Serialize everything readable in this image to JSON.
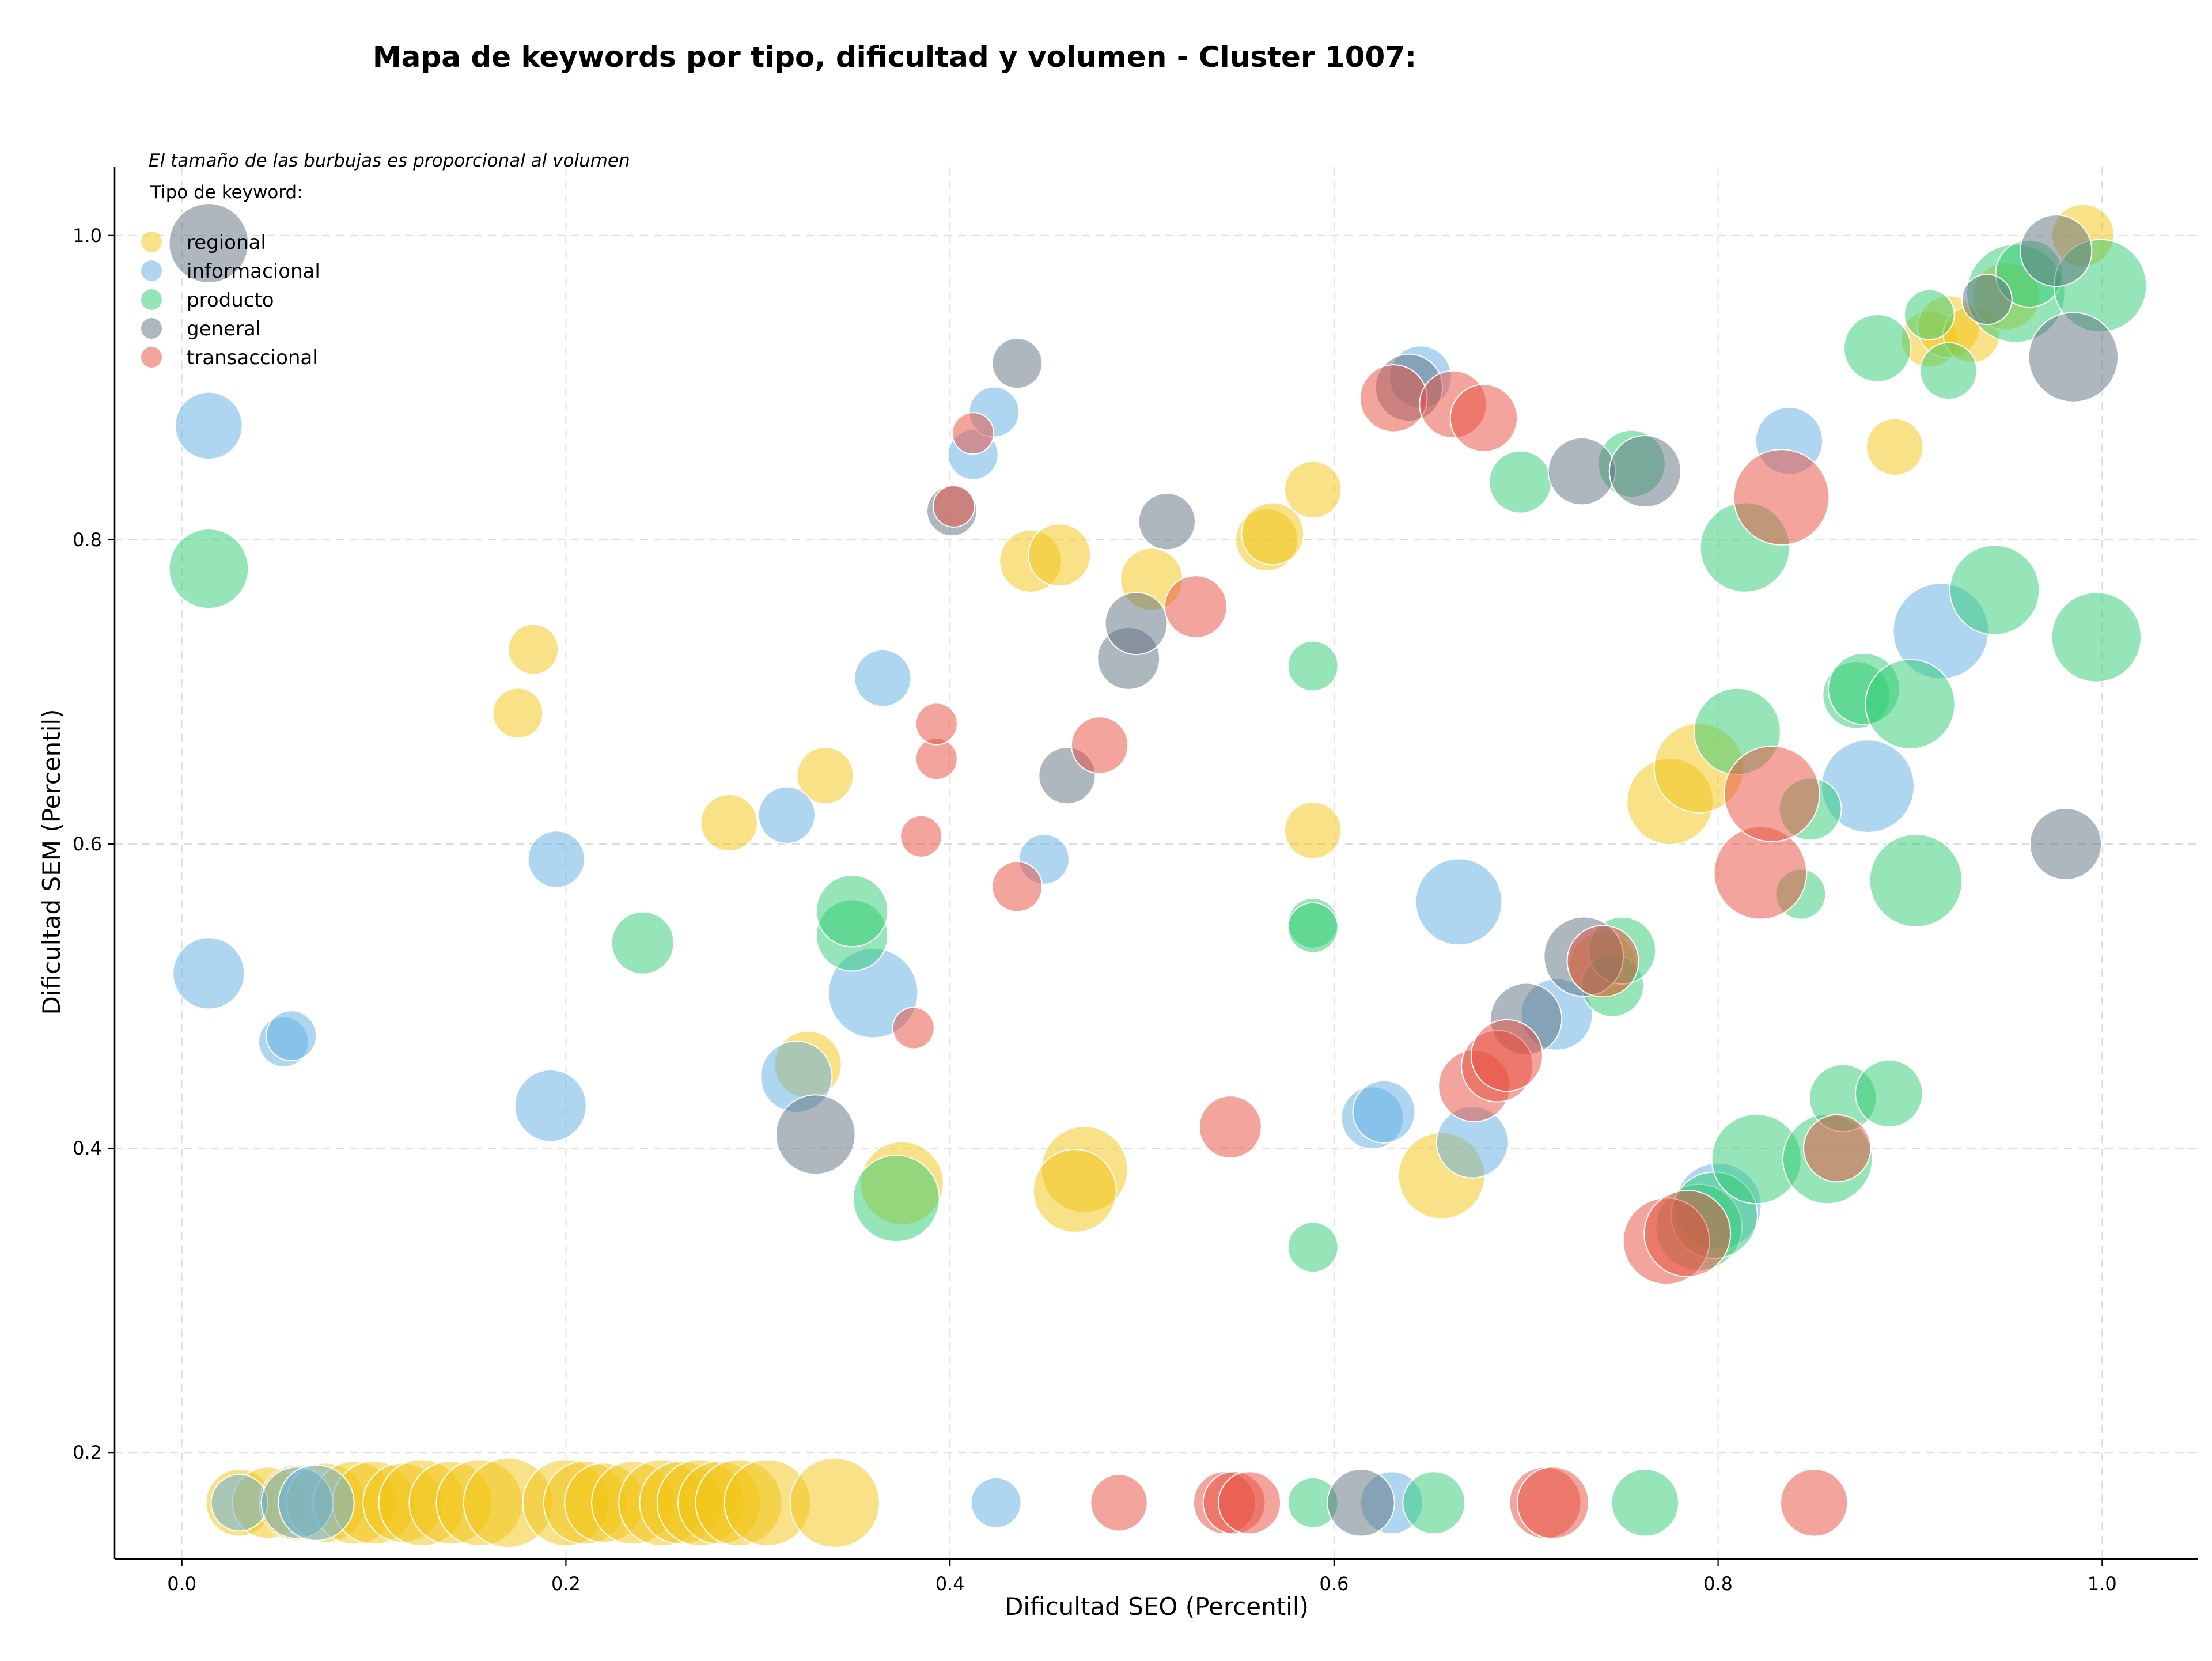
{
  "chart_data": {
    "type": "scatter",
    "title": "Mapa de keywords por tipo, dificultad y volumen - Cluster 1007:",
    "subtitle": "El tamaño de las burbujas es proporcional al volumen",
    "xlabel": "Dificultad SEO (Percentil)",
    "ylabel": "Dificultad SEM (Percentil)",
    "xlim": [
      -0.035,
      1.05
    ],
    "ylim": [
      0.13,
      1.045
    ],
    "x_ticks": [
      "0.0",
      "0.2",
      "0.4",
      "0.6",
      "0.8",
      "1.0"
    ],
    "y_ticks": [
      "0.2",
      "0.4",
      "0.6",
      "0.8",
      "1.0"
    ],
    "grid": true,
    "legend": {
      "title": "Tipo de keyword:",
      "position": "top-left"
    },
    "series": [
      {
        "name": "regional",
        "color": "#f1c40f",
        "points": [
          [
            0.03,
            0.167,
            5
          ],
          [
            0.045,
            0.167,
            6
          ],
          [
            0.06,
            0.167,
            7
          ],
          [
            0.075,
            0.167,
            8
          ],
          [
            0.09,
            0.167,
            9
          ],
          [
            0.1,
            0.167,
            9
          ],
          [
            0.115,
            0.167,
            8
          ],
          [
            0.125,
            0.167,
            10
          ],
          [
            0.14,
            0.167,
            9
          ],
          [
            0.155,
            0.167,
            10
          ],
          [
            0.17,
            0.167,
            11
          ],
          [
            0.2,
            0.167,
            10
          ],
          [
            0.21,
            0.167,
            9
          ],
          [
            0.22,
            0.167,
            8
          ],
          [
            0.235,
            0.167,
            9
          ],
          [
            0.25,
            0.167,
            10
          ],
          [
            0.26,
            0.167,
            9
          ],
          [
            0.27,
            0.167,
            10
          ],
          [
            0.28,
            0.167,
            9
          ],
          [
            0.29,
            0.167,
            10
          ],
          [
            0.305,
            0.167,
            10
          ],
          [
            0.34,
            0.167,
            11
          ],
          [
            0.183,
            0.728,
            2
          ],
          [
            0.175,
            0.686,
            2
          ],
          [
            0.285,
            0.614,
            3
          ],
          [
            0.335,
            0.645,
            3
          ],
          [
            0.326,
            0.455,
            5
          ],
          [
            0.375,
            0.377,
            9
          ],
          [
            0.47,
            0.386,
            10
          ],
          [
            0.465,
            0.372,
            9
          ],
          [
            0.442,
            0.786,
            4
          ],
          [
            0.457,
            0.79,
            4
          ],
          [
            0.505,
            0.774,
            4
          ],
          [
            0.565,
            0.8,
            4
          ],
          [
            0.568,
            0.804,
            4
          ],
          [
            0.589,
            0.833,
            3
          ],
          [
            0.589,
            0.609,
            3
          ],
          [
            0.656,
            0.382,
            10
          ],
          [
            0.775,
            0.628,
            10
          ],
          [
            0.79,
            0.65,
            11
          ],
          [
            0.892,
            0.861,
            3
          ],
          [
            0.91,
            0.932,
            3
          ],
          [
            0.92,
            0.94,
            4
          ],
          [
            0.932,
            0.935,
            3
          ],
          [
            0.95,
            0.96,
            5
          ],
          [
            0.99,
            1.0,
            4
          ],
          [
            0.74,
            0.52,
            5
          ]
        ]
      },
      {
        "name": "informacional",
        "color": "#5dade2",
        "points": [
          [
            0.03,
            0.167,
            3
          ],
          [
            0.06,
            0.167,
            6
          ],
          [
            0.07,
            0.167,
            7
          ],
          [
            0.014,
            0.875,
            5
          ],
          [
            0.014,
            0.515,
            6
          ],
          [
            0.195,
            0.59,
            3
          ],
          [
            0.192,
            0.428,
            6
          ],
          [
            0.053,
            0.47,
            2
          ],
          [
            0.057,
            0.474,
            2
          ],
          [
            0.315,
            0.619,
            3
          ],
          [
            0.32,
            0.447,
            6
          ],
          [
            0.36,
            0.502,
            11
          ],
          [
            0.365,
            0.709,
            3
          ],
          [
            0.412,
            0.856,
            2
          ],
          [
            0.423,
            0.884,
            2
          ],
          [
            0.449,
            0.59,
            2
          ],
          [
            0.424,
            0.167,
            2
          ],
          [
            0.62,
            0.42,
            4
          ],
          [
            0.626,
            0.424,
            4
          ],
          [
            0.63,
            0.167,
            4
          ],
          [
            0.645,
            0.907,
            4
          ],
          [
            0.665,
            0.562,
            10
          ],
          [
            0.672,
            0.404,
            6
          ],
          [
            0.716,
            0.488,
            6
          ],
          [
            0.8,
            0.362,
            10
          ],
          [
            0.837,
            0.865,
            5
          ],
          [
            0.878,
            0.638,
            12
          ],
          [
            0.916,
            0.74,
            13
          ]
        ]
      },
      {
        "name": "producto",
        "color": "#2ecc71",
        "points": [
          [
            0.014,
            0.781,
            8
          ],
          [
            0.24,
            0.535,
            4
          ],
          [
            0.349,
            0.54,
            6
          ],
          [
            0.349,
            0.556,
            6
          ],
          [
            0.372,
            0.367,
            10
          ],
          [
            0.589,
            0.717,
            2
          ],
          [
            0.589,
            0.548,
            2
          ],
          [
            0.589,
            0.545,
            2
          ],
          [
            0.589,
            0.335,
            2
          ],
          [
            0.589,
            0.167,
            2
          ],
          [
            0.652,
            0.167,
            4
          ],
          [
            0.697,
            0.838,
            4
          ],
          [
            0.745,
            0.507,
            4
          ],
          [
            0.75,
            0.53,
            5
          ],
          [
            0.755,
            0.85,
            5
          ],
          [
            0.762,
            0.167,
            5
          ],
          [
            0.79,
            0.348,
            10
          ],
          [
            0.798,
            0.356,
            10
          ],
          [
            0.81,
            0.674,
            10
          ],
          [
            0.814,
            0.795,
            11
          ],
          [
            0.82,
            0.393,
            11
          ],
          [
            0.843,
            0.567,
            2
          ],
          [
            0.848,
            0.623,
            4
          ],
          [
            0.857,
            0.393,
            11
          ],
          [
            0.865,
            0.433,
            5
          ],
          [
            0.872,
            0.698,
            5
          ],
          [
            0.876,
            0.702,
            6
          ],
          [
            0.883,
            0.926,
            5
          ],
          [
            0.889,
            0.436,
            5
          ],
          [
            0.9,
            0.692,
            11
          ],
          [
            0.903,
            0.576,
            12
          ],
          [
            0.91,
            0.948,
            2
          ],
          [
            0.92,
            0.911,
            3
          ],
          [
            0.944,
            0.767,
            11
          ],
          [
            0.955,
            0.962,
            14
          ],
          [
            0.962,
            0.975,
            5
          ],
          [
            0.997,
            0.736,
            11
          ],
          [
            0.999,
            0.967,
            12
          ]
        ]
      },
      {
        "name": "general",
        "color": "#5d6d7e",
        "points": [
          [
            0.014,
            0.995,
            8
          ],
          [
            0.33,
            0.409,
            8
          ],
          [
            0.401,
            0.819,
            2
          ],
          [
            0.435,
            0.916,
            2
          ],
          [
            0.461,
            0.645,
            3
          ],
          [
            0.493,
            0.722,
            4
          ],
          [
            0.497,
            0.745,
            4
          ],
          [
            0.513,
            0.812,
            3
          ],
          [
            0.614,
            0.167,
            5
          ],
          [
            0.639,
            0.9,
            5
          ],
          [
            0.7,
            0.485,
            6
          ],
          [
            0.729,
            0.845,
            5
          ],
          [
            0.73,
            0.526,
            8
          ],
          [
            0.762,
            0.845,
            6
          ],
          [
            0.94,
            0.958,
            2
          ],
          [
            0.976,
            0.99,
            6
          ],
          [
            0.981,
            0.6,
            6
          ],
          [
            0.985,
            0.92,
            11
          ]
        ]
      },
      {
        "name": "transaccional",
        "color": "#e74c3c",
        "points": [
          [
            0.381,
            0.479,
            1
          ],
          [
            0.385,
            0.605,
            1
          ],
          [
            0.393,
            0.656,
            1
          ],
          [
            0.393,
            0.679,
            1
          ],
          [
            0.402,
            0.822,
            1
          ],
          [
            0.412,
            0.87,
            1
          ],
          [
            0.435,
            0.572,
            2
          ],
          [
            0.478,
            0.665,
            3
          ],
          [
            0.488,
            0.167,
            3
          ],
          [
            0.528,
            0.756,
            4
          ],
          [
            0.546,
            0.414,
            4
          ],
          [
            0.543,
            0.167,
            4
          ],
          [
            0.548,
            0.167,
            4
          ],
          [
            0.556,
            0.167,
            4
          ],
          [
            0.631,
            0.893,
            5
          ],
          [
            0.662,
            0.889,
            5
          ],
          [
            0.678,
            0.88,
            5
          ],
          [
            0.673,
            0.441,
            6
          ],
          [
            0.685,
            0.454,
            6
          ],
          [
            0.69,
            0.461,
            6
          ],
          [
            0.71,
            0.167,
            6
          ],
          [
            0.714,
            0.167,
            6
          ],
          [
            0.74,
            0.523,
            6
          ],
          [
            0.773,
            0.339,
            10
          ],
          [
            0.784,
            0.344,
            10
          ],
          [
            0.822,
            0.581,
            12
          ],
          [
            0.828,
            0.633,
            13
          ],
          [
            0.833,
            0.828,
            13
          ],
          [
            0.85,
            0.167,
            5
          ],
          [
            0.862,
            0.4,
            5
          ]
        ]
      }
    ]
  }
}
